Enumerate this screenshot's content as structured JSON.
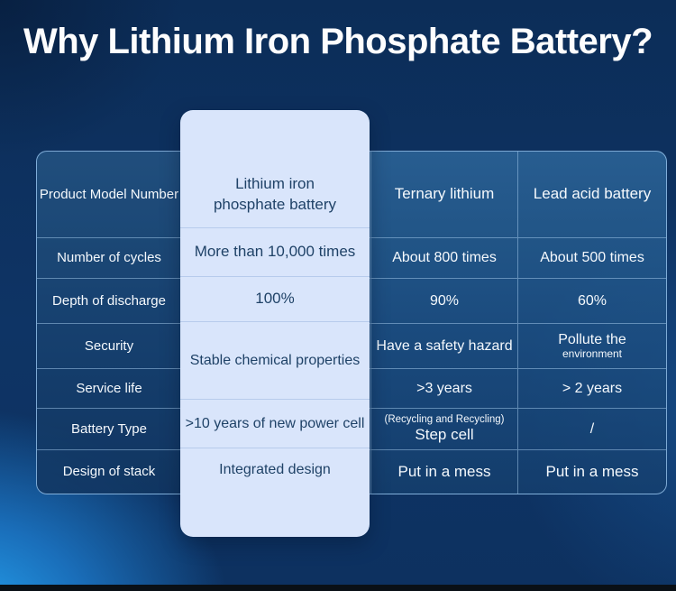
{
  "title": "Why Lithium Iron Phosphate Battery?",
  "colors": {
    "background_top": "#0c2d58",
    "background_glow_bottom_left": "#25a3f0",
    "panel_fill_top": "#2e689b",
    "panel_fill_bottom": "#153f6e",
    "grid_line": "#a8cdf0",
    "card_background": "#d9e5fb",
    "card_text": "#1f4267",
    "table_text": "#f5f9fd",
    "footer_bar": "#0a1016"
  },
  "table": {
    "labels": [
      "Product Model Number",
      "Number of cycles",
      "Depth of discharge",
      "Security",
      "Service life",
      "Battery Type",
      "Design of stack"
    ],
    "card_column": {
      "header_line1": "Lithium iron",
      "header_line2": "phosphate battery",
      "cycles": "More than 10,000 times",
      "discharge": "100%",
      "security": "Stable chemical properties",
      "service_life": ">10 years of new power cell",
      "design": "Integrated design"
    },
    "ternary_column": {
      "header": "Ternary lithium",
      "cycles": "About 800 times",
      "discharge": "90%",
      "security": "Have a safety hazard",
      "service_life": ">3 years",
      "battery_type_note": "(Recycling and Recycling)",
      "battery_type": "Step cell",
      "design": "Put in a mess"
    },
    "lead_column": {
      "header": "Lead acid battery",
      "cycles": "About 500 times",
      "discharge": "60%",
      "security_line1": "Pollute the",
      "security_line2": "environment",
      "service_life": "> 2 years",
      "battery_type": "/",
      "design": "Put in a mess"
    }
  }
}
